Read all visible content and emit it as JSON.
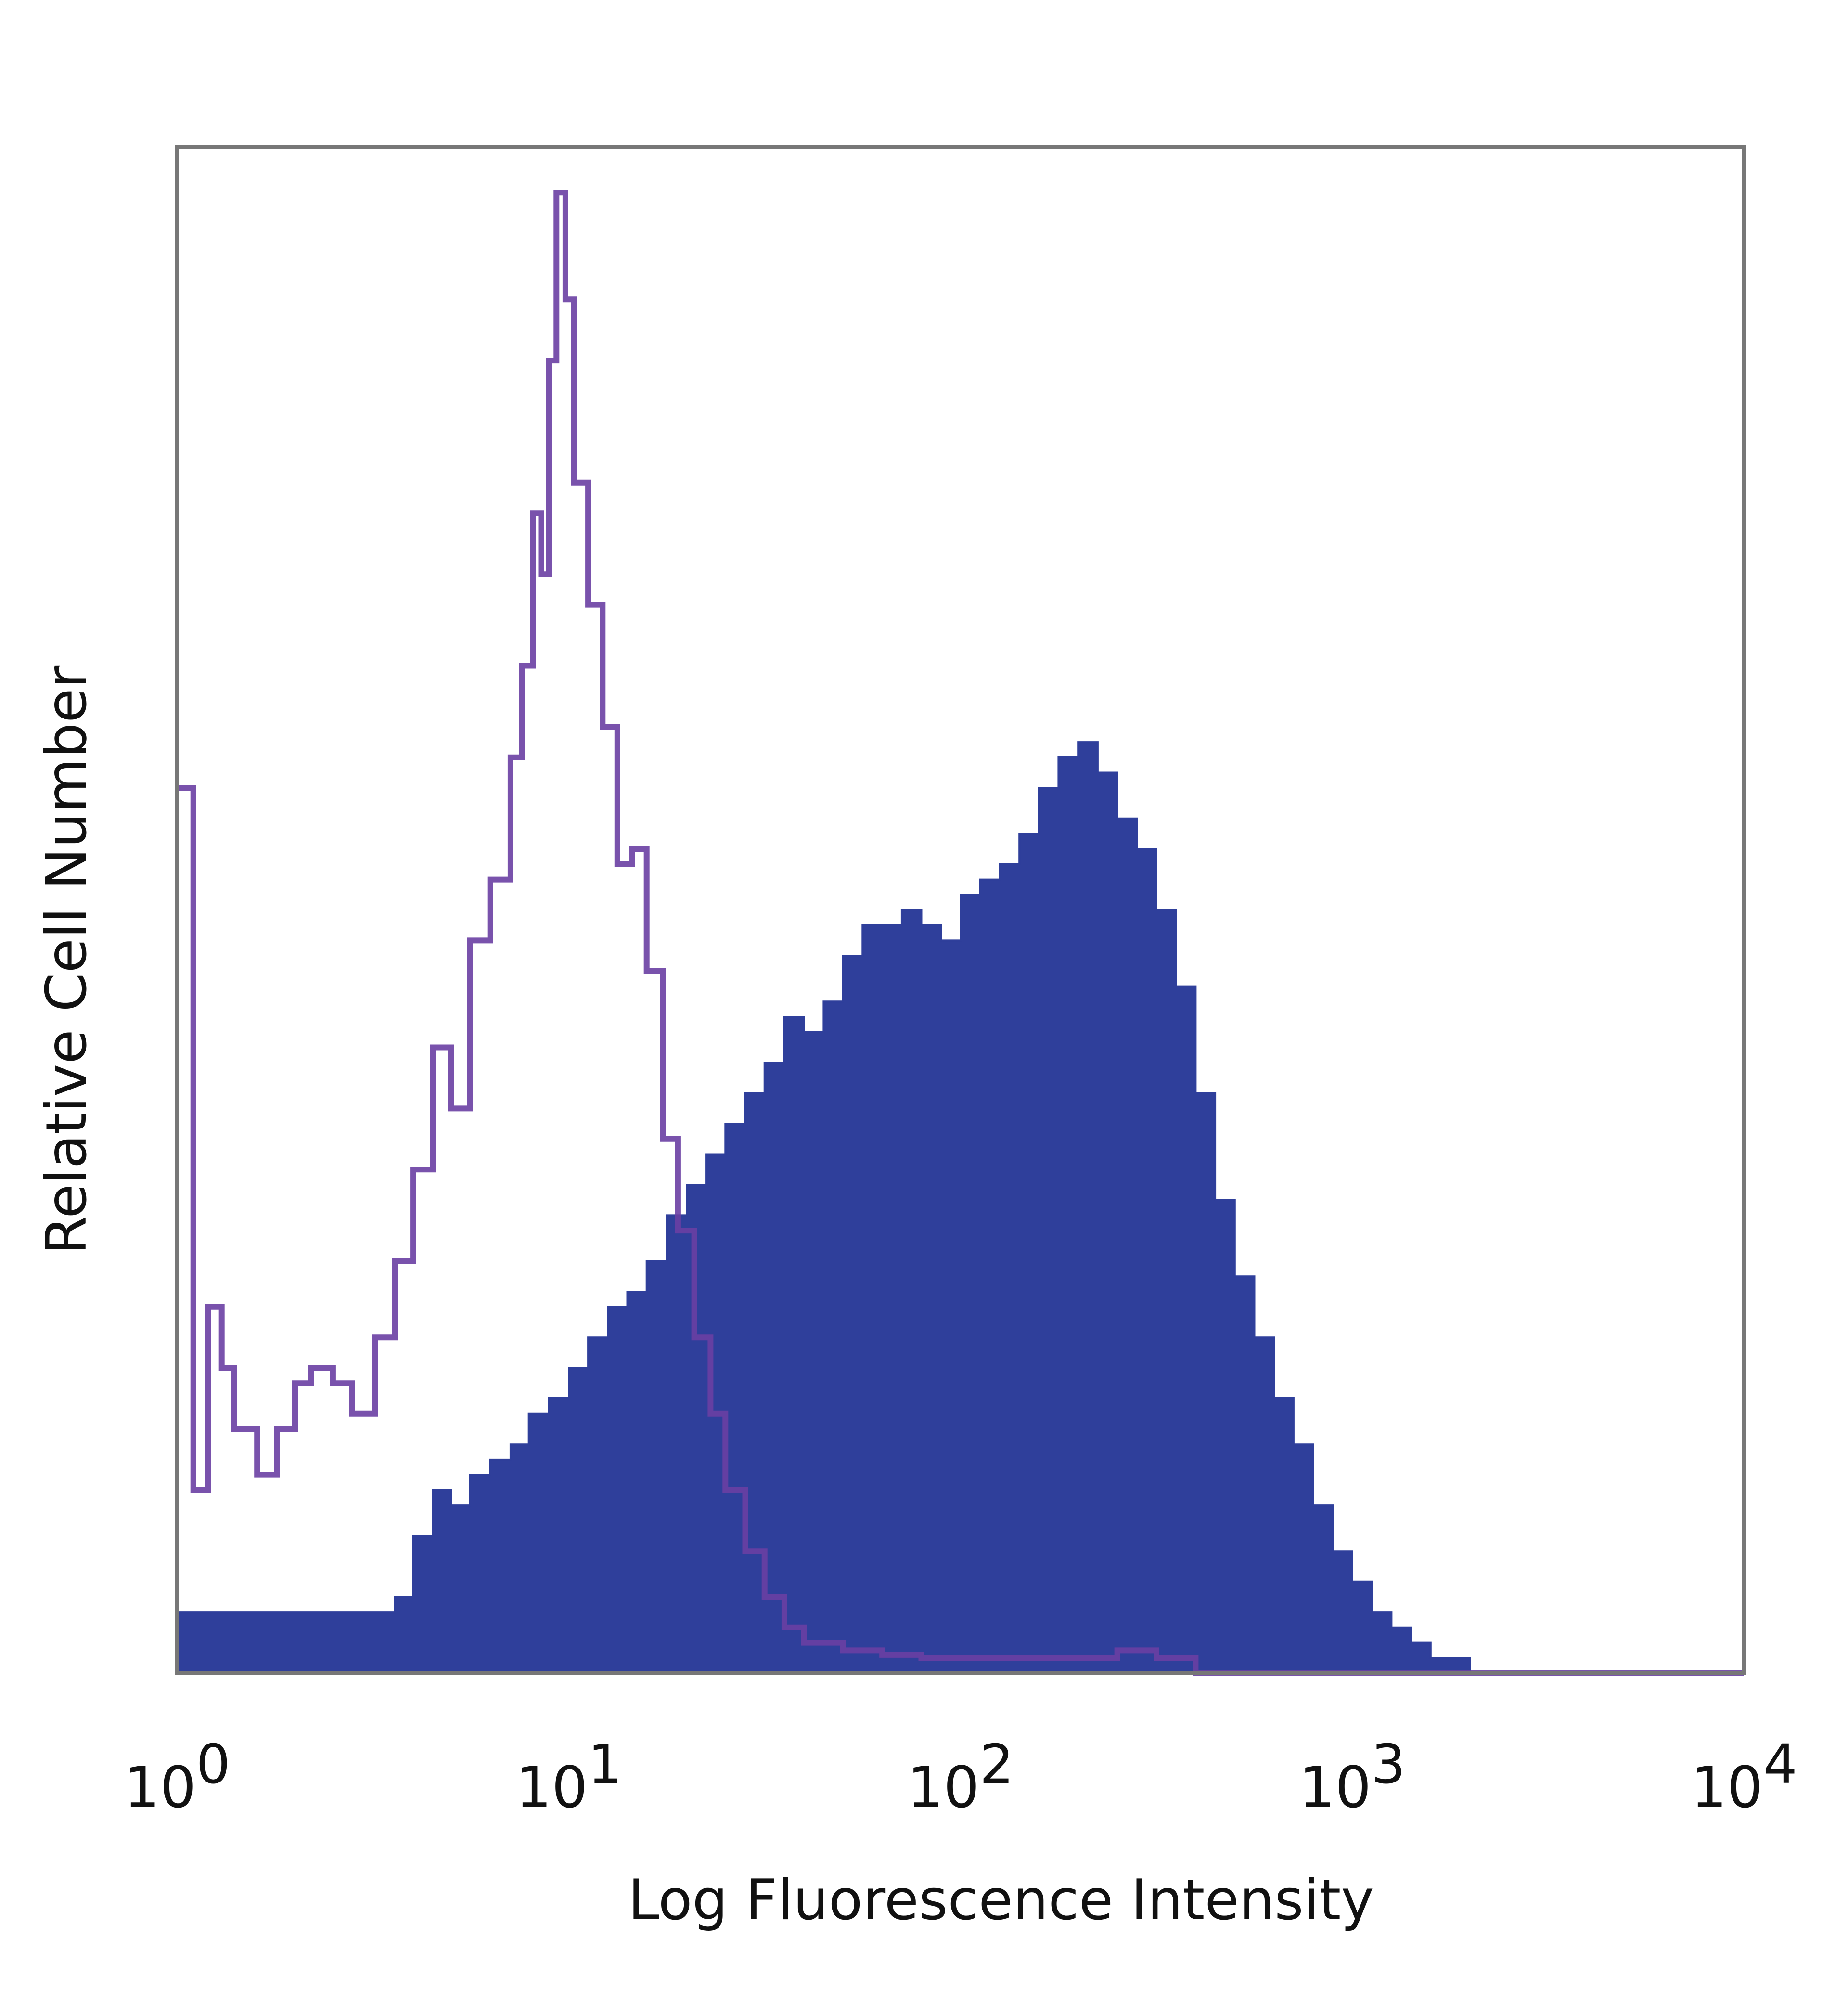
{
  "chart_data": {
    "type": "area",
    "title": "",
    "xlabel": "Log Fluorescence Intensity",
    "ylabel": "Relative Cell Number",
    "x_scale": "log",
    "xlim": [
      1,
      10000
    ],
    "ylim": [
      0,
      100
    ],
    "x_ticks": [
      {
        "value": 1,
        "base": "10",
        "exp": "0"
      },
      {
        "value": 10,
        "base": "10",
        "exp": "1"
      },
      {
        "value": 100,
        "base": "10",
        "exp": "2"
      },
      {
        "value": 1000,
        "base": "10",
        "exp": "3"
      },
      {
        "value": 10000,
        "base": "10",
        "exp": "4"
      }
    ],
    "grid": false,
    "legend": "none",
    "colors": {
      "stained_fill": "#2f3f9b",
      "control_line": "#6a3fa3",
      "frame": "#777777"
    },
    "series": [
      {
        "style": "outline",
        "x": [
          1.0,
          1.1,
          1.2,
          1.3,
          1.4,
          1.6,
          1.8,
          2.0,
          2.2,
          2.5,
          2.8,
          3.2,
          3.6,
          4.0,
          4.5,
          5.0,
          5.6,
          6.3,
          7.1,
          7.6,
          8.1,
          8.5,
          8.9,
          9.3,
          9.8,
          10.3,
          11.2,
          12.2,
          13.3,
          14.5,
          15.8,
          17.4,
          19.0,
          20.9,
          23.0,
          25.1,
          28.2,
          31.6,
          35.5,
          39.8,
          50.1,
          63.1,
          79.4,
          100,
          125.9,
          158.5,
          199.5,
          251.2,
          316.2,
          398.1,
          501.2,
          1000,
          10000
        ],
        "values": [
          58,
          12,
          24,
          20,
          16,
          13,
          16,
          19,
          20,
          19,
          17,
          22,
          27,
          33,
          41,
          37,
          48,
          52,
          60,
          66,
          76,
          72,
          86,
          97,
          90,
          78,
          70,
          62,
          53,
          54,
          46,
          35,
          29,
          22,
          17,
          12,
          8,
          5,
          3,
          2,
          1.5,
          1.2,
          1,
          1,
          1,
          1,
          1,
          1.5,
          1,
          0,
          0,
          0,
          0
        ]
      },
      {
        "style": "filled",
        "x": [
          1.0,
          1.3,
          1.6,
          2.0,
          2.5,
          3.0,
          3.6,
          4.0,
          4.5,
          5.0,
          5.6,
          6.3,
          7.1,
          7.9,
          8.9,
          10.0,
          11.2,
          12.6,
          14.1,
          15.8,
          17.8,
          20.0,
          22.4,
          25.1,
          28.2,
          31.6,
          35.5,
          39.8,
          44.7,
          50.1,
          56.2,
          63.1,
          70.8,
          79.4,
          89.1,
          100,
          112.2,
          125.9,
          141.3,
          158.5,
          177.8,
          199.5,
          223.9,
          251.2,
          281.8,
          316.2,
          354.8,
          398.1,
          446.7,
          501.2,
          562.3,
          631,
          707.9,
          794.3,
          891.3,
          1000,
          1122,
          1259,
          1413,
          1585,
          1778,
          1995,
          10000
        ],
        "values": [
          4,
          4,
          4,
          4,
          4,
          4,
          5,
          9,
          12,
          11,
          13,
          14,
          15,
          17,
          18,
          20,
          22,
          24,
          25,
          27,
          30,
          32,
          34,
          36,
          38,
          40,
          43,
          42,
          44,
          47,
          49,
          49,
          50,
          49,
          48,
          51,
          52,
          53,
          55,
          58,
          60,
          61,
          59,
          56,
          54,
          50,
          45,
          38,
          31,
          26,
          22,
          18,
          15,
          11,
          8,
          6,
          4,
          3,
          2,
          1,
          1,
          0,
          0
        ]
      }
    ]
  }
}
